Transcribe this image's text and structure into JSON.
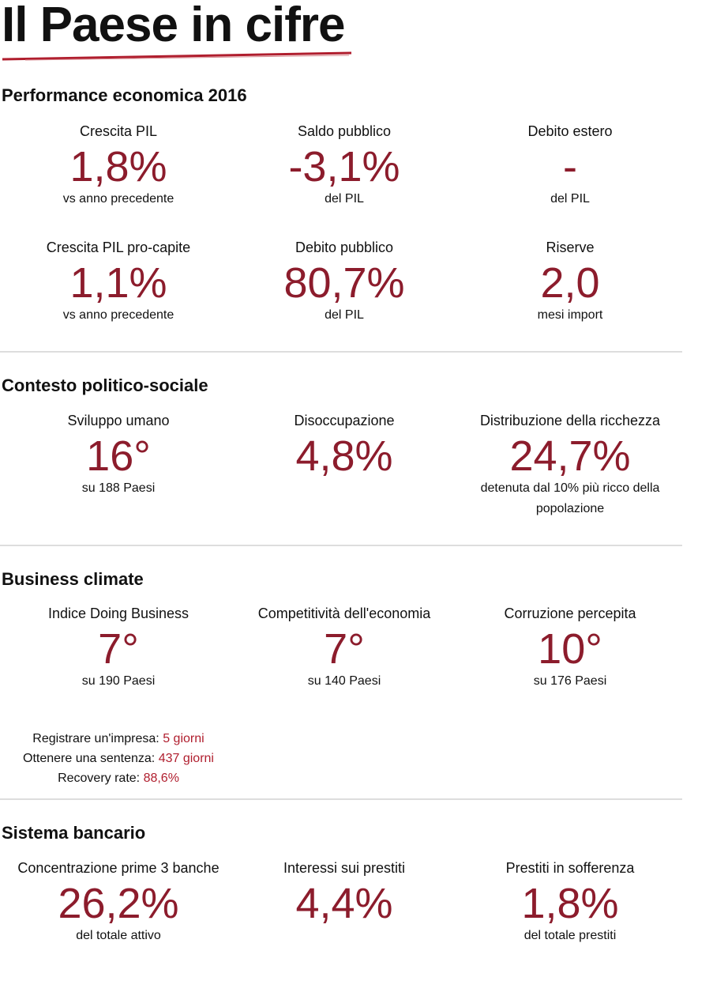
{
  "title": "Il Paese in cifre",
  "colors": {
    "accent": "#8c1c2c",
    "underline": "#b01e2e"
  },
  "sections": [
    {
      "heading": "Performance economica 2016",
      "rows": [
        [
          {
            "label": "Crescita PIL",
            "value": "1,8%",
            "sub": "vs anno precedente"
          },
          {
            "label": "Saldo pubblico",
            "value": "-3,1%",
            "sub": "del PIL"
          },
          {
            "label": "Debito estero",
            "value": "-",
            "sub": "del PIL"
          }
        ],
        [
          {
            "label": "Crescita PIL pro-capite",
            "value": "1,1%",
            "sub": "vs anno precedente"
          },
          {
            "label": "Debito pubblico",
            "value": "80,7%",
            "sub": "del PIL"
          },
          {
            "label": "Riserve",
            "value": "2,0",
            "sub": "mesi import"
          }
        ]
      ]
    },
    {
      "heading": "Contesto politico-sociale",
      "rows": [
        [
          {
            "label": "Sviluppo umano",
            "value": "16°",
            "sub": "su 188 Paesi"
          },
          {
            "label": "Disoccupazione",
            "value": "4,8%",
            "sub": ""
          },
          {
            "label": "Distribuzione della ricchezza",
            "value": "24,7%",
            "sub": "detenuta dal 10% più ricco della popolazione"
          }
        ]
      ]
    },
    {
      "heading": "Business climate",
      "rows": [
        [
          {
            "label": "Indice Doing Business",
            "value": "7°",
            "sub": "su 190 Paesi"
          },
          {
            "label": "Competitività dell'economia",
            "value": "7°",
            "sub": "su 140 Paesi"
          },
          {
            "label": "Corruzione percepita",
            "value": "10°",
            "sub": "su 176 Paesi"
          }
        ]
      ],
      "extras": [
        {
          "label": "Registrare un'impresa:",
          "value": "5 giorni"
        },
        {
          "label": "Ottenere una sentenza:",
          "value": "437 giorni"
        },
        {
          "label": "Recovery rate:",
          "value": "88,6%"
        }
      ]
    },
    {
      "heading": "Sistema bancario",
      "rows": [
        [
          {
            "label": "Concentrazione prime 3 banche",
            "value": "26,2%",
            "sub": "del totale attivo"
          },
          {
            "label": "Interessi sui prestiti",
            "value": "4,4%",
            "sub": ""
          },
          {
            "label": "Prestiti in sofferenza",
            "value": "1,8%",
            "sub": "del totale prestiti"
          }
        ]
      ]
    }
  ]
}
